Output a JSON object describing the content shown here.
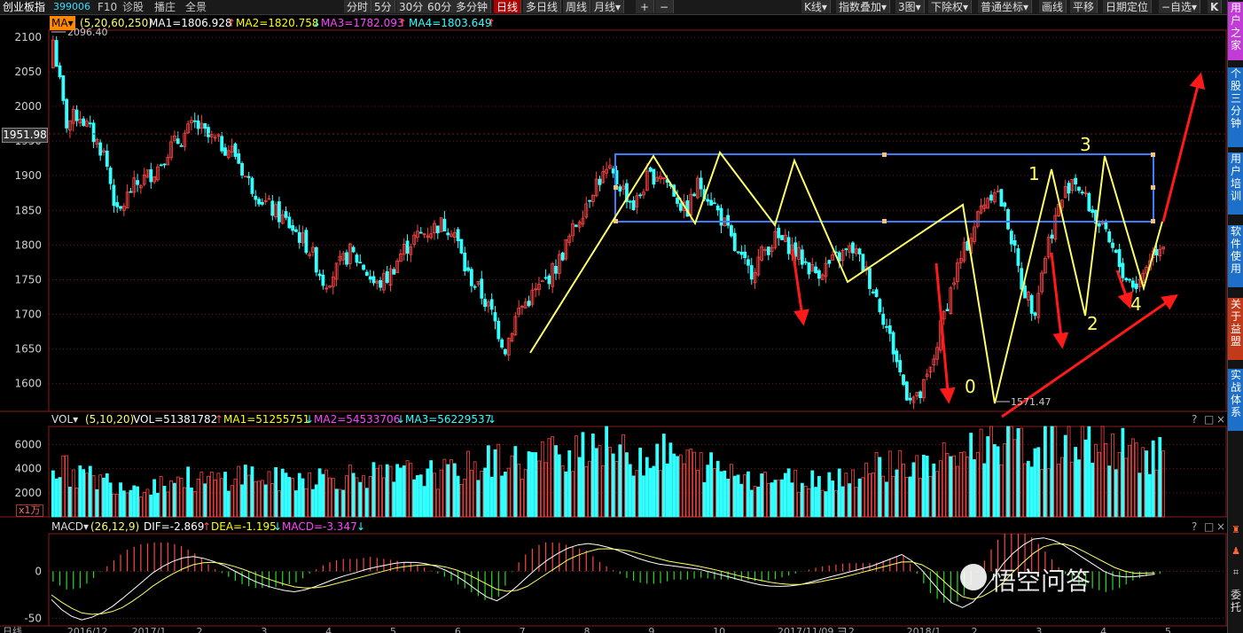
{
  "toolbar": {
    "index_name": "创业板指",
    "index_code": "399006",
    "left_items": [
      "F10",
      "诊股",
      "播庄",
      "全景"
    ],
    "periods": [
      "分时",
      "5分",
      "30分",
      "60分",
      "多分钟",
      "日线",
      "多日线",
      "周线",
      "月线▾"
    ],
    "active_period": "日线",
    "zoom_in": "+",
    "zoom_out": "−",
    "right_items": [
      "K线▾",
      "指数叠加▾",
      "3图▾",
      "下除权▾",
      "普通坐标▾",
      "画线",
      "平移",
      "日期定位",
      "−自选▾",
      "K"
    ]
  },
  "side_tabs": [
    "用户之家",
    "个股三分钟",
    "用户培训",
    "软件使用",
    "关于益盟",
    "实战体系"
  ],
  "side_tools": [
    "委托"
  ],
  "panels": {
    "price": {
      "indicator_button": "MA▾",
      "params": "(5,20,60,250)",
      "items": [
        {
          "text": "MA1=1806.928",
          "arrow": "↑",
          "color": "#ffffff"
        },
        {
          "text": "MA2=1820.758",
          "arrow": "↓",
          "color": "#ffff00"
        },
        {
          "text": "MA3=1782.093",
          "arrow": "↑",
          "color": "#ff44ff"
        },
        {
          "text": "MA4=1803.649",
          "arrow": "↑",
          "color": "#33ffff"
        }
      ],
      "current_price_tag": "1951.98",
      "high_label": "2096.40",
      "low_label": "1571.47"
    },
    "volume": {
      "indicator_button": "VOL▾",
      "params": "(5,10,20)",
      "items": [
        {
          "text": "VOL=51381782",
          "arrow": "↑",
          "color": "#ffffff"
        },
        {
          "text": "MA1=51255751",
          "arrow": "↓",
          "color": "#ffff00"
        },
        {
          "text": "MA2=54533706",
          "arrow": "↓",
          "color": "#ff44ff"
        },
        {
          "text": "MA3=56229537",
          "arrow": "↓",
          "color": "#33ffff"
        }
      ],
      "unit": "x1万"
    },
    "macd": {
      "indicator_button": "MACD▾",
      "params": "(26,12,9)",
      "items": [
        {
          "text": "DIF=-2.869",
          "arrow": "↑",
          "color": "#ffffff"
        },
        {
          "text": "DEA=-1.195",
          "arrow": "↓",
          "color": "#ffff00"
        },
        {
          "text": "MACD=-3.347",
          "arrow": "↓",
          "color": "#ff44ff"
        }
      ]
    },
    "panel_buttons": [
      "?",
      "□",
      "×"
    ]
  },
  "annotations": {
    "wave_labels": [
      "0",
      "1",
      "2",
      "3",
      "4"
    ]
  },
  "bottom_axis": {
    "labels": [
      "日线",
      "2016/12",
      "2017/1",
      "2",
      "3",
      "4",
      "5",
      "6",
      "7",
      "8",
      "9",
      "10",
      "2017/11/09 三",
      "12",
      "2018/1",
      "2",
      "3",
      "4",
      "5"
    ]
  },
  "watermark": "悟空问答",
  "colors": {
    "up": "#ff4444",
    "down": "#33ffff",
    "ma_yellow": "#ffff66",
    "box_blue": "#3a7dff",
    "arrow_red": "#ff1a1a",
    "grid_red": "#701818"
  },
  "chart_data": [
    {
      "type": "candlestick",
      "ylim": [
        1560,
        2110
      ],
      "yticks": [
        2100,
        2050,
        2000,
        1950,
        1900,
        1850,
        1800,
        1750,
        1700,
        1650,
        1600
      ],
      "trend_close": [
        2096,
        1975,
        1990,
        1960,
        1930,
        1840,
        1880,
        1895,
        1910,
        1940,
        1955,
        1975,
        1955,
        1945,
        1935,
        1895,
        1870,
        1850,
        1835,
        1815,
        1790,
        1745,
        1765,
        1790,
        1770,
        1740,
        1755,
        1790,
        1810,
        1820,
        1830,
        1825,
        1760,
        1735,
        1700,
        1650,
        1705,
        1725,
        1745,
        1770,
        1810,
        1850,
        1890,
        1905,
        1885,
        1855,
        1895,
        1905,
        1880,
        1845,
        1890,
        1865,
        1830,
        1785,
        1760,
        1790,
        1810,
        1800,
        1780,
        1760,
        1770,
        1785,
        1795,
        1760,
        1715,
        1655,
        1590,
        1575,
        1620,
        1700,
        1765,
        1810,
        1860,
        1885,
        1830,
        1745,
        1705,
        1800,
        1860,
        1900,
        1865,
        1830,
        1795,
        1755,
        1740,
        1785,
        1805
      ]
    },
    {
      "type": "bar",
      "ylabel": "x1万",
      "ylim": [
        0,
        7500
      ],
      "yticks": [
        6000,
        4000,
        2000
      ],
      "trend_values": [
        4300,
        3800,
        3500,
        3200,
        3000,
        2800,
        2600,
        2500,
        2700,
        3000,
        3200,
        3000,
        2900,
        3100,
        3400,
        3600,
        3300,
        3100,
        3000,
        3200,
        3400,
        3300,
        3200,
        3400,
        3600,
        3400,
        3300,
        3500,
        3700,
        3600,
        3500,
        3700,
        4000,
        4300,
        4600,
        4800,
        4500,
        4700,
        5000,
        5200,
        5600,
        6100,
        6400,
        5800,
        5200,
        4900,
        5100,
        5300,
        5000,
        4700,
        4400,
        4100,
        3800,
        3600,
        3400,
        3300,
        3200,
        3100,
        3000,
        3100,
        3200,
        3300,
        3500,
        3900,
        4200,
        4600,
        4400,
        4000,
        4200,
        4600,
        5100,
        5600,
        6100,
        6600,
        6300,
        5800,
        5500,
        6000,
        6400,
        6700,
        6300,
        6000,
        5700,
        5500,
        5300,
        5400,
        5300
      ]
    },
    {
      "type": "bar",
      "series": [
        {
          "name": "DIF",
          "values": [
            -30,
            -45,
            -52,
            -48,
            -40,
            -28,
            -15,
            -2,
            8,
            14,
            16,
            12,
            6,
            -2,
            -10,
            -16,
            -20,
            -22,
            -18,
            -12,
            -6,
            -2,
            3,
            6,
            9,
            10,
            8,
            4,
            -4,
            -14,
            -26,
            -32,
            -20,
            -6,
            8,
            18,
            26,
            30,
            28,
            24,
            18,
            12,
            8,
            6,
            4,
            2,
            -2,
            -6,
            -10,
            -14,
            -16,
            -16,
            -14,
            -10,
            -6,
            -2,
            2,
            6,
            12,
            18,
            8,
            -10,
            -28,
            -40,
            -32,
            -14,
            8,
            24,
            34,
            36,
            30,
            20,
            10,
            0,
            -6,
            -6,
            -4,
            -2
          ]
        },
        {
          "name": "DEA",
          "values": [
            -25,
            -36,
            -44,
            -46,
            -44,
            -38,
            -28,
            -16,
            -6,
            2,
            8,
            10,
            8,
            4,
            -2,
            -8,
            -13,
            -17,
            -18,
            -16,
            -12,
            -8,
            -4,
            0,
            4,
            6,
            7,
            6,
            2,
            -4,
            -12,
            -20,
            -22,
            -16,
            -6,
            4,
            14,
            20,
            24,
            24,
            22,
            18,
            14,
            10,
            8,
            5,
            2,
            -2,
            -6,
            -9,
            -12,
            -14,
            -14,
            -12,
            -9,
            -6,
            -2,
            2,
            6,
            10,
            10,
            2,
            -12,
            -26,
            -30,
            -24,
            -12,
            4,
            18,
            28,
            30,
            26,
            18,
            10,
            2,
            -2,
            -2,
            -1
          ]
        }
      ],
      "ylim": [
        -58,
        40
      ],
      "yticks": [
        0,
        -50
      ]
    }
  ]
}
